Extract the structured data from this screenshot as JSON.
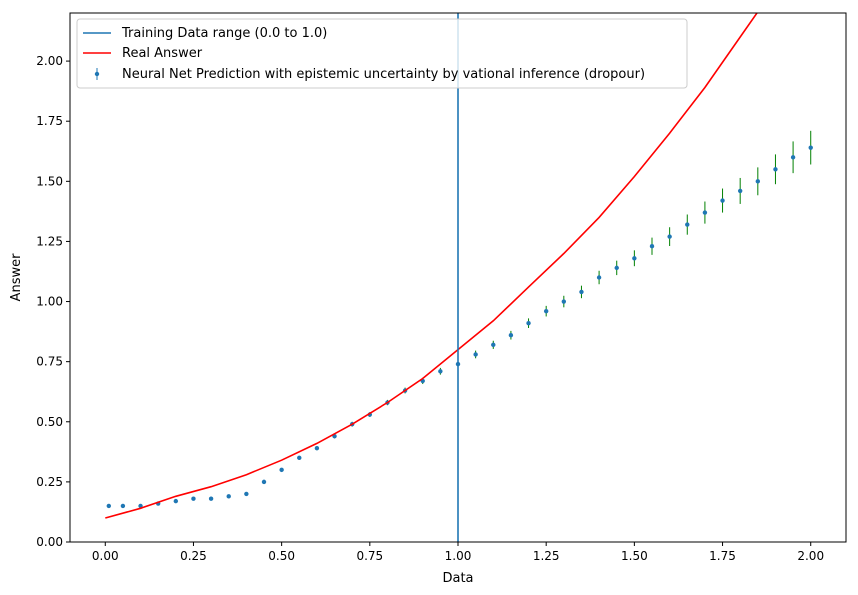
{
  "chart_data": {
    "type": "scatter",
    "xlabel": "Data",
    "ylabel": "Answer",
    "xlim": [
      -0.1,
      2.1
    ],
    "ylim": [
      0.0,
      2.2
    ],
    "xticks": [
      "0.00",
      "0.25",
      "0.50",
      "0.75",
      "1.00",
      "1.25",
      "1.50",
      "1.75",
      "2.00"
    ],
    "xtick_values": [
      0,
      0.25,
      0.5,
      0.75,
      1.0,
      1.25,
      1.5,
      1.75,
      2.0
    ],
    "yticks": [
      "0.00",
      "0.25",
      "0.50",
      "0.75",
      "1.00",
      "1.25",
      "1.50",
      "1.75",
      "2.00"
    ],
    "ytick_values": [
      0,
      0.25,
      0.5,
      0.75,
      1.0,
      1.25,
      1.5,
      1.75,
      2.0
    ],
    "grid": false,
    "legend_position": "top-left",
    "series": [
      {
        "name": "Training Data range (0.0 to 1.0)",
        "kind": "vline",
        "x": 1.0,
        "color": "#1f77b4"
      },
      {
        "name": "Real Answer",
        "kind": "line",
        "color": "#ff0000",
        "x": [
          0.0,
          0.1,
          0.2,
          0.3,
          0.4,
          0.5,
          0.6,
          0.7,
          0.8,
          0.9,
          1.0,
          1.1,
          1.2,
          1.3,
          1.4,
          1.5,
          1.6,
          1.7,
          1.8,
          1.9
        ],
        "y": [
          0.1,
          0.14,
          0.19,
          0.23,
          0.28,
          0.34,
          0.41,
          0.49,
          0.58,
          0.68,
          0.8,
          0.92,
          1.06,
          1.2,
          1.35,
          1.52,
          1.7,
          1.89,
          2.1,
          2.31
        ]
      },
      {
        "name": "Neural Net Prediction with epistemic uncertainty by vational inference (dropour)",
        "kind": "errorbar",
        "color": "#1f77b4",
        "error_color": "#008000",
        "x": [
          0.01,
          0.05,
          0.1,
          0.15,
          0.2,
          0.25,
          0.3,
          0.35,
          0.4,
          0.45,
          0.5,
          0.55,
          0.6,
          0.65,
          0.7,
          0.75,
          0.8,
          0.85,
          0.9,
          0.95,
          1.0,
          1.05,
          1.1,
          1.15,
          1.2,
          1.25,
          1.3,
          1.35,
          1.4,
          1.45,
          1.5,
          1.55,
          1.6,
          1.65,
          1.7,
          1.75,
          1.8,
          1.85,
          1.9,
          1.95,
          2.0
        ],
        "y": [
          0.15,
          0.15,
          0.15,
          0.16,
          0.17,
          0.18,
          0.18,
          0.19,
          0.2,
          0.25,
          0.3,
          0.35,
          0.39,
          0.44,
          0.49,
          0.53,
          0.58,
          0.63,
          0.67,
          0.71,
          0.74,
          0.78,
          0.82,
          0.86,
          0.91,
          0.96,
          1.0,
          1.04,
          1.1,
          1.14,
          1.18,
          1.23,
          1.27,
          1.32,
          1.37,
          1.42,
          1.46,
          1.5,
          1.55,
          1.6,
          1.64
        ],
        "err": [
          0.005,
          0.005,
          0.005,
          0.005,
          0.005,
          0.005,
          0.005,
          0.005,
          0.006,
          0.006,
          0.007,
          0.008,
          0.008,
          0.009,
          0.01,
          0.01,
          0.011,
          0.012,
          0.013,
          0.014,
          0.015,
          0.016,
          0.017,
          0.018,
          0.02,
          0.022,
          0.024,
          0.026,
          0.028,
          0.03,
          0.033,
          0.036,
          0.039,
          0.042,
          0.046,
          0.05,
          0.054,
          0.058,
          0.062,
          0.066,
          0.07
        ]
      }
    ]
  }
}
